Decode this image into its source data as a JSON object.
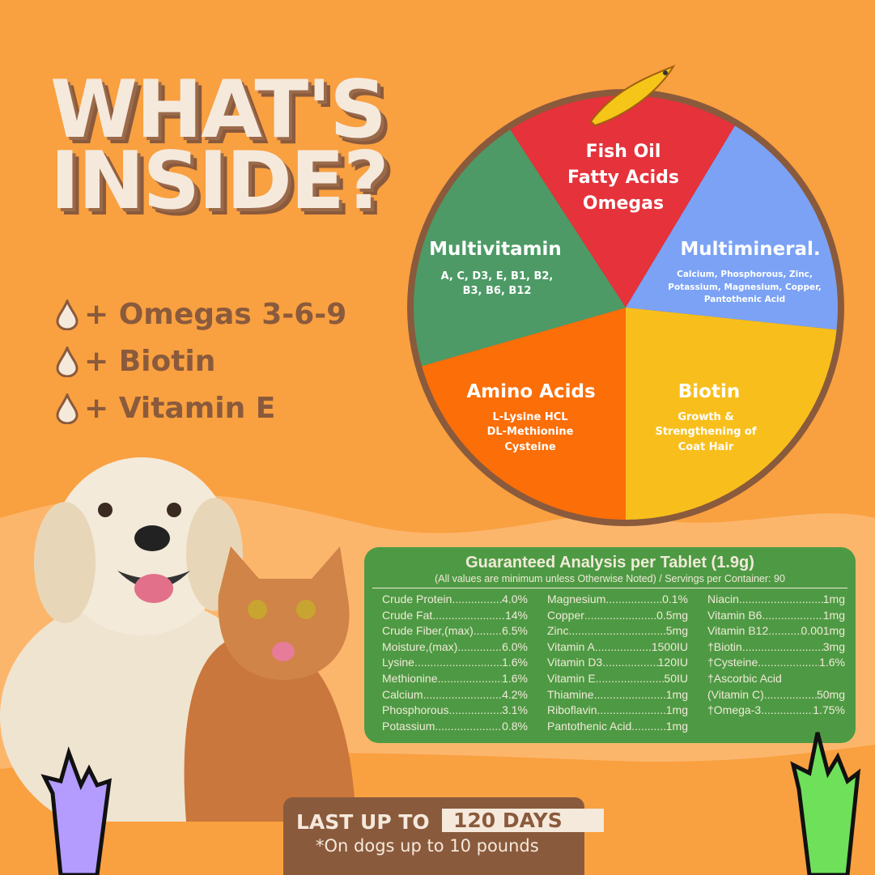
{
  "title": {
    "line1": "WHAT'S",
    "line2": "INSIDE?"
  },
  "features": [
    {
      "icon": "drop-icon",
      "label": "+ Omegas 3-6-9"
    },
    {
      "icon": "drop-icon",
      "label": "+ Biotin"
    },
    {
      "icon": "drop-icon",
      "label": "+ Vitamin E"
    }
  ],
  "wheel": {
    "fish_oil": {
      "l1": "Fish Oil",
      "l2": "Fatty Acids",
      "l3": "Omegas",
      "color": "#e5323b"
    },
    "multimineral": {
      "title": "Multimineral.",
      "l1": "Calcium, Phosphorous, Zinc,",
      "l2": "Potassium, Magnesium, Copper,",
      "l3": "Pantothenic Acid",
      "color": "#7ba2f5"
    },
    "biotin": {
      "title": "Biotin",
      "l1": "Growth &",
      "l2": "Strengthening of",
      "l3": "Coat Hair",
      "color": "#f8bf1c"
    },
    "amino": {
      "title": "Amino Acids",
      "l1": "L-Lysine HCL",
      "l2": "DL-Methionine",
      "l3": "Cysteine",
      "color": "#fb6e08"
    },
    "multivitamin": {
      "title": "Multivitamin",
      "l1": "A, C, D3, E, B1, B2,",
      "l2": "B3, B6, B12",
      "color": "#4d9a66"
    }
  },
  "analysis": {
    "title": "Guaranteed Analysis per Tablet (1.9g)",
    "subtitle": "(All values are minimum unless Otherwise Noted) / Servings per Container: 90",
    "col1": [
      [
        "Crude Protein",
        "4.0%"
      ],
      [
        "Crude Fat",
        "14%"
      ],
      [
        "Crude Fiber,(max)",
        "6.5%"
      ],
      [
        "Moisture,(max)",
        "6.0%"
      ],
      [
        "Lysine",
        "1.6%"
      ],
      [
        "Methionine",
        "1.6%"
      ],
      [
        "Calcium",
        "4.2%"
      ],
      [
        "Phosphorous",
        "3.1%"
      ],
      [
        "Potassium",
        "0.8%"
      ]
    ],
    "col2": [
      [
        "Magnesium",
        "0.1%"
      ],
      [
        "Copper",
        "0.5mg"
      ],
      [
        "Zinc",
        "5mg"
      ],
      [
        "Vitamin A",
        "1500IU"
      ],
      [
        "Vitamin D3",
        "120IU"
      ],
      [
        "Vitamin E",
        "50IU"
      ],
      [
        "Thiamine",
        "1mg"
      ],
      [
        "Riboflavin",
        "1mg"
      ],
      [
        "Pantothenic Acid",
        "1mg"
      ]
    ],
    "col3": [
      [
        "Niacin",
        "1mg"
      ],
      [
        "Vitamin B6",
        "1mg"
      ],
      [
        "Vitamin B12",
        "0.001mg"
      ],
      [
        "†Biotin",
        "3mg"
      ],
      [
        "†Cysteine",
        "1.6%"
      ],
      [
        "†Ascorbic Acid",
        ""
      ],
      [
        "(Vitamin C)",
        "50mg"
      ],
      [
        "†Omega-3",
        "1.75%"
      ]
    ]
  },
  "banner": {
    "prefix": "LAST UP TO",
    "days": "120 DAYS",
    "note": "*On dogs up to 10 pounds"
  },
  "colors": {
    "background": "#f9a040",
    "brown": "#8a5a3c",
    "cream": "#f5e9dc",
    "table_green": "#4e9a44"
  }
}
